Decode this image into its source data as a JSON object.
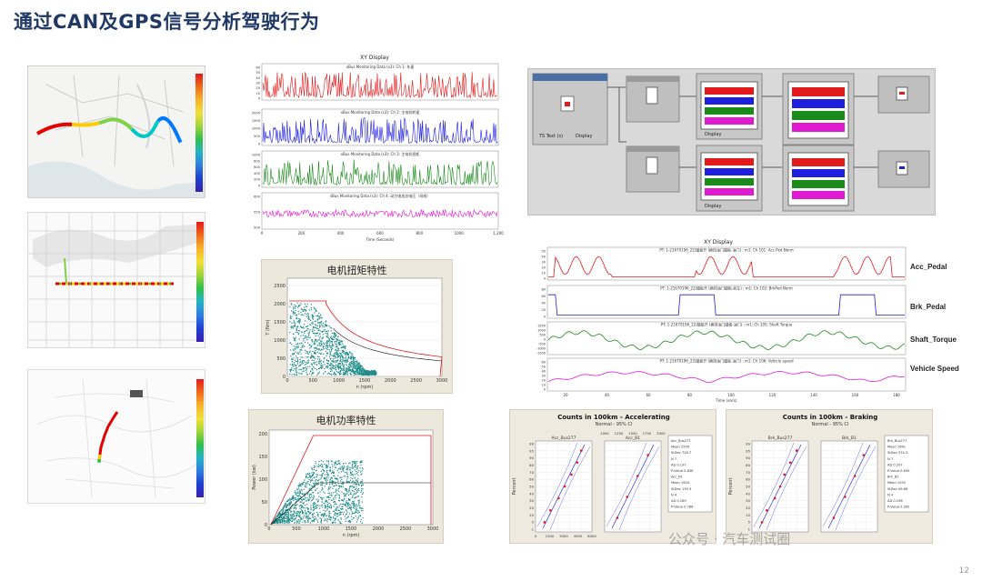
{
  "title": "通过CAN及GPS信号分析驾驶行为",
  "page_number": "12",
  "watermark": "公众号 · 汽车测试圈",
  "maps": {
    "map1_colors": [
      "#e60000",
      "#ff6a00",
      "#ffcc00",
      "#7fd14a",
      "#00c8c8",
      "#0078ff",
      "#0000cc"
    ],
    "legend_colors": [
      "#e31a1c",
      "#f06a1a",
      "#f7b32b",
      "#f2e03b",
      "#9fd43a",
      "#2fbf4a",
      "#23b3c7",
      "#2f7de0",
      "#1f3fd0",
      "#3a1fb0"
    ]
  },
  "xy_display_top": {
    "title": "XY Display",
    "traces": [
      {
        "label": "xBus Monitoring Data (s3): Ch 1: 车速",
        "color": "#e31a1c",
        "yticks": [
          "60",
          "50",
          "40",
          "30",
          "20",
          "10",
          "0"
        ]
      },
      {
        "label": "xBus Monitoring Data (s3): Ch 2: 主电机转速",
        "color": "#1f1fe0",
        "yticks": [
          "2000",
          "1500",
          "1000",
          "500",
          "0"
        ]
      },
      {
        "label": "xBus Monitoring Data (s3): Ch 3: 主电机扭矩",
        "color": "#1a8a1a",
        "yticks": [
          "1000",
          "800",
          "600",
          "400",
          "200",
          "0"
        ]
      },
      {
        "label": "xBus Monitoring Data (s3): Ch 4: 动力电池总电压（母线）",
        "color": "#e01ad0",
        "yticks": [
          "600",
          "550",
          "500"
        ]
      }
    ],
    "xticks": [
      "0",
      "200",
      "400",
      "600",
      "800",
      "1000",
      "1,200"
    ],
    "xlabel": "Time (Seconds)"
  },
  "torque_chart": {
    "title": "电机扭矩特性",
    "ylabel": "T (Nm)",
    "xlabel": "n (rpm)",
    "yticks": [
      "2500",
      "2000",
      "1500",
      "1000",
      "500",
      "0"
    ],
    "xticks": [
      "0",
      "500",
      "1000",
      "1500",
      "2000",
      "2500",
      "3000"
    ]
  },
  "power_chart": {
    "title": "电机功率特性",
    "ylabel": "Power (kw)",
    "xlabel": "n (rpm)",
    "yticks": [
      "200",
      "150",
      "100",
      "50",
      "0"
    ],
    "xticks": [
      "0",
      "500",
      "1000",
      "1500",
      "2000",
      "2500",
      "3000"
    ]
  },
  "flow_diagram": {
    "block_labels": [
      "TS Text (s)",
      "Display",
      "Display",
      "Display"
    ]
  },
  "xy_display_right": {
    "title": "XY Display",
    "traces": [
      {
        "label": "PT: 1-21670196_22/踏板开 (换挡油门踏板-油门) : m1: Ch 101: Acc Ped Norm",
        "name": "Acc_Pedal",
        "color": "#e31a1c",
        "yticks": [
          "50",
          "40",
          "30",
          "20",
          "10",
          "0"
        ]
      },
      {
        "label": "PT: 1-21670196_22/踏板开 (换挡油门踏板-刹车) : m1: Ch 102: BrkPed Norm",
        "name": "Brk_Pedal",
        "color": "#1f1fe0",
        "yticks": [
          "80",
          "60",
          "40",
          "20",
          "0"
        ]
      },
      {
        "label": "PT: 1-21670196_22/踏板开 (换挡油门踏板-油门) : m1: Ch 105: Shaft Torque",
        "name": "Shaft_Torque",
        "color": "#1a8a1a",
        "yticks": [
          "1500",
          "1000",
          "500",
          "0",
          "-500",
          "-1000",
          "-1500"
        ]
      },
      {
        "label": "PT: 1-21670196_22/踏板开 (换挡油门踏板-油门) : m1: Ch 106: Vehicle speed",
        "name": "Vehicle Speed",
        "color": "#e01ad0",
        "yticks": [
          "60",
          "50",
          "40",
          "30",
          "20",
          "10",
          "0"
        ]
      }
    ],
    "xticks": [
      "20",
      "40",
      "60",
      "80",
      "100",
      "120",
      "140",
      "160",
      "180"
    ],
    "xlabel": "Time (secs)"
  },
  "prob_accel": {
    "title": "Counts in 100km - Accelerating",
    "subtitle": "Normal - 95% CI",
    "plot1_title": "Acc_Bus277",
    "plot2_title": "Acc_B1",
    "ylabel": "Percent",
    "yticks": [
      "99",
      "95",
      "90",
      "80",
      "70",
      "60",
      "50",
      "40",
      "30",
      "20",
      "10",
      "5",
      "1"
    ],
    "x1ticks": [
      "0",
      "1500",
      "3000",
      "4500",
      "6000"
    ],
    "x2ticks": [
      "1000",
      "1250",
      "1500",
      "1750",
      "2000"
    ],
    "stats": [
      "Acc_Bus277",
      "Mean  2500",
      "StDev  726.7",
      "N  7",
      "AD  0.197",
      "P-Value  0.836",
      "Acc_B1",
      "Mean  1620",
      "StDev  139.3",
      "N  4",
      "AD  0.189",
      "P-Value  0.786"
    ]
  },
  "prob_brake": {
    "title": "Counts in 100km - Braking",
    "subtitle": "Normal - 95% CI",
    "plot1_title": "Brk_Bus277",
    "plot2_title": "Brk_B1",
    "ylabel": "Percent",
    "yticks": [
      "99",
      "95",
      "90",
      "80",
      "70",
      "60",
      "50",
      "40",
      "30",
      "20",
      "10",
      "5",
      "1"
    ],
    "stats": [
      "Brk_Bus277",
      "Mean  1691",
      "StDev  374.3",
      "N  7",
      "AD  0.207",
      "P-Value  0.839",
      "Brk_B1",
      "Mean  1052",
      "StDev  49.86",
      "N  4",
      "AD  0.298",
      "P-Value  0.392"
    ]
  }
}
